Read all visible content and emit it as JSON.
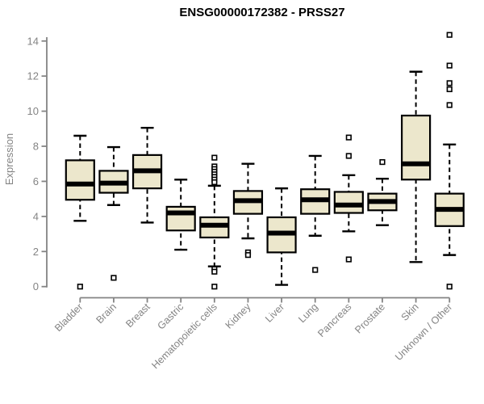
{
  "chart_data": {
    "type": "boxplot",
    "title": "ENSG00000172382 - PRSS27",
    "ylabel": "Expression",
    "xlabel": "",
    "ylim": [
      0,
      14
    ],
    "yticks": [
      0,
      2,
      4,
      6,
      8,
      10,
      12,
      14
    ],
    "grid": false,
    "legend_position": "none",
    "categories": [
      "Bladder",
      "Brain",
      "Breast",
      "Gastric",
      "Hematopoietic cells",
      "Kidney",
      "Liver",
      "Lung",
      "Pancreas",
      "Prostate",
      "Skin",
      "Unknown / Other"
    ],
    "series": [
      {
        "category": "Bladder",
        "whisker_low": 3.75,
        "q1": 4.95,
        "median": 5.85,
        "q3": 7.2,
        "whisker_high": 8.6,
        "outliers": [
          0.0
        ]
      },
      {
        "category": "Brain",
        "whisker_low": 4.65,
        "q1": 5.35,
        "median": 5.9,
        "q3": 6.6,
        "whisker_high": 7.95,
        "outliers": [
          0.5
        ]
      },
      {
        "category": "Breast",
        "whisker_low": 3.65,
        "q1": 5.6,
        "median": 6.6,
        "q3": 7.5,
        "whisker_high": 9.05,
        "outliers": []
      },
      {
        "category": "Gastric",
        "whisker_low": 2.1,
        "q1": 3.2,
        "median": 4.2,
        "q3": 4.55,
        "whisker_high": 6.1,
        "outliers": []
      },
      {
        "category": "Hematopoietic cells",
        "whisker_low": 1.15,
        "q1": 2.8,
        "median": 3.5,
        "q3": 3.95,
        "whisker_high": 5.75,
        "outliers": [
          7.35,
          6.85,
          6.7,
          6.55,
          6.4,
          6.25,
          6.1,
          5.95,
          1.0,
          0.85,
          0.0
        ]
      },
      {
        "category": "Kidney",
        "whisker_low": 2.75,
        "q1": 4.15,
        "median": 4.9,
        "q3": 5.45,
        "whisker_high": 7.0,
        "outliers": [
          1.95,
          1.8
        ]
      },
      {
        "category": "Liver",
        "whisker_low": 0.1,
        "q1": 1.95,
        "median": 3.05,
        "q3": 3.95,
        "whisker_high": 5.6,
        "outliers": []
      },
      {
        "category": "Lung",
        "whisker_low": 2.9,
        "q1": 4.15,
        "median": 4.95,
        "q3": 5.55,
        "whisker_high": 7.45,
        "outliers": [
          0.95
        ]
      },
      {
        "category": "Pancreas",
        "whisker_low": 3.15,
        "q1": 4.2,
        "median": 4.65,
        "q3": 5.4,
        "whisker_high": 6.35,
        "outliers": [
          8.5,
          7.45,
          1.55
        ]
      },
      {
        "category": "Prostate",
        "whisker_low": 3.5,
        "q1": 4.35,
        "median": 4.85,
        "q3": 5.3,
        "whisker_high": 6.15,
        "outliers": [
          7.1
        ]
      },
      {
        "category": "Skin",
        "whisker_low": 1.4,
        "q1": 6.1,
        "median": 7.0,
        "q3": 9.75,
        "whisker_high": 12.25,
        "outliers": []
      },
      {
        "category": "Unknown / Other",
        "whisker_low": 1.8,
        "q1": 3.45,
        "median": 4.4,
        "q3": 5.3,
        "whisker_high": 8.1,
        "outliers": [
          14.35,
          12.6,
          11.6,
          11.25,
          10.35,
          0.0
        ]
      }
    ],
    "colors": {
      "box_fill": "#ECE7CC",
      "box_stroke": "#000000",
      "median": "#000000",
      "whisker": "#000000",
      "outlier_stroke": "#000000",
      "outlier_fill": "#FFFFFF",
      "axis": "#848484",
      "tick_text": "#848484",
      "title": "#000000",
      "background": "#FFFFFF"
    }
  }
}
